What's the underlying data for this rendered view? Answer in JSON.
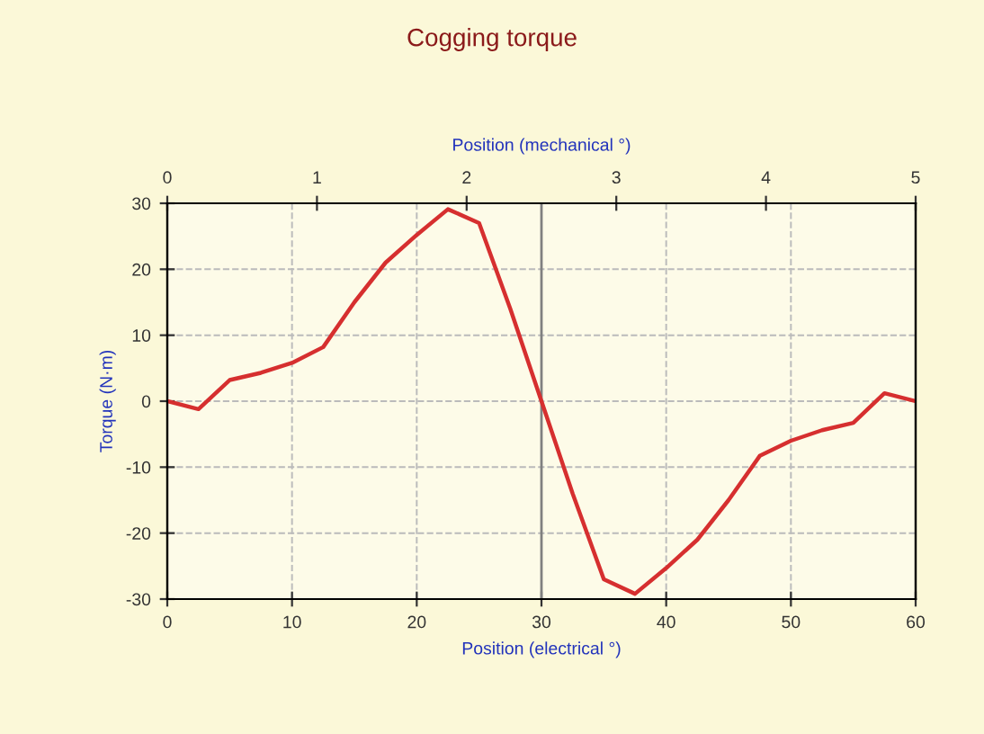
{
  "chart_data": {
    "type": "line",
    "title": "Cogging torque",
    "xlabel": "Position (electrical °)",
    "ylabel": "Torque (N·m)",
    "x2label": "Position (mechanical °)",
    "x": [
      0,
      2.5,
      5,
      7.5,
      10,
      12.5,
      15,
      17.5,
      20,
      22.5,
      25,
      27.5,
      30,
      32.5,
      35,
      37.5,
      40,
      42.5,
      45,
      47.5,
      50,
      52.5,
      55,
      57.5,
      60
    ],
    "series": [
      {
        "color": "#d62f2f",
        "values": [
          0,
          -1.2,
          3.2,
          4.3,
          5.8,
          8.2,
          15,
          21,
          25.2,
          29.1,
          27,
          14,
          0,
          -14,
          -27,
          -29.2,
          -25.3,
          -21,
          -15,
          -8.3,
          -6,
          -4.4,
          -3.3,
          1.2,
          0
        ]
      }
    ],
    "xlim": [
      0,
      60
    ],
    "xticks": [
      0,
      10,
      20,
      30,
      40,
      50,
      60
    ],
    "ylim": [
      -30,
      30
    ],
    "yticks": [
      -30,
      -20,
      -10,
      0,
      10,
      20,
      30
    ],
    "x2lim": [
      0,
      5
    ],
    "x2ticks": [
      0,
      1,
      2,
      3,
      4,
      5
    ],
    "ref_lines": [
      {
        "axis": "x",
        "value": 30,
        "color": "#808080",
        "line_style": "solid"
      }
    ],
    "grid": true,
    "line_style": "solid",
    "marker": "none",
    "legend": false
  }
}
